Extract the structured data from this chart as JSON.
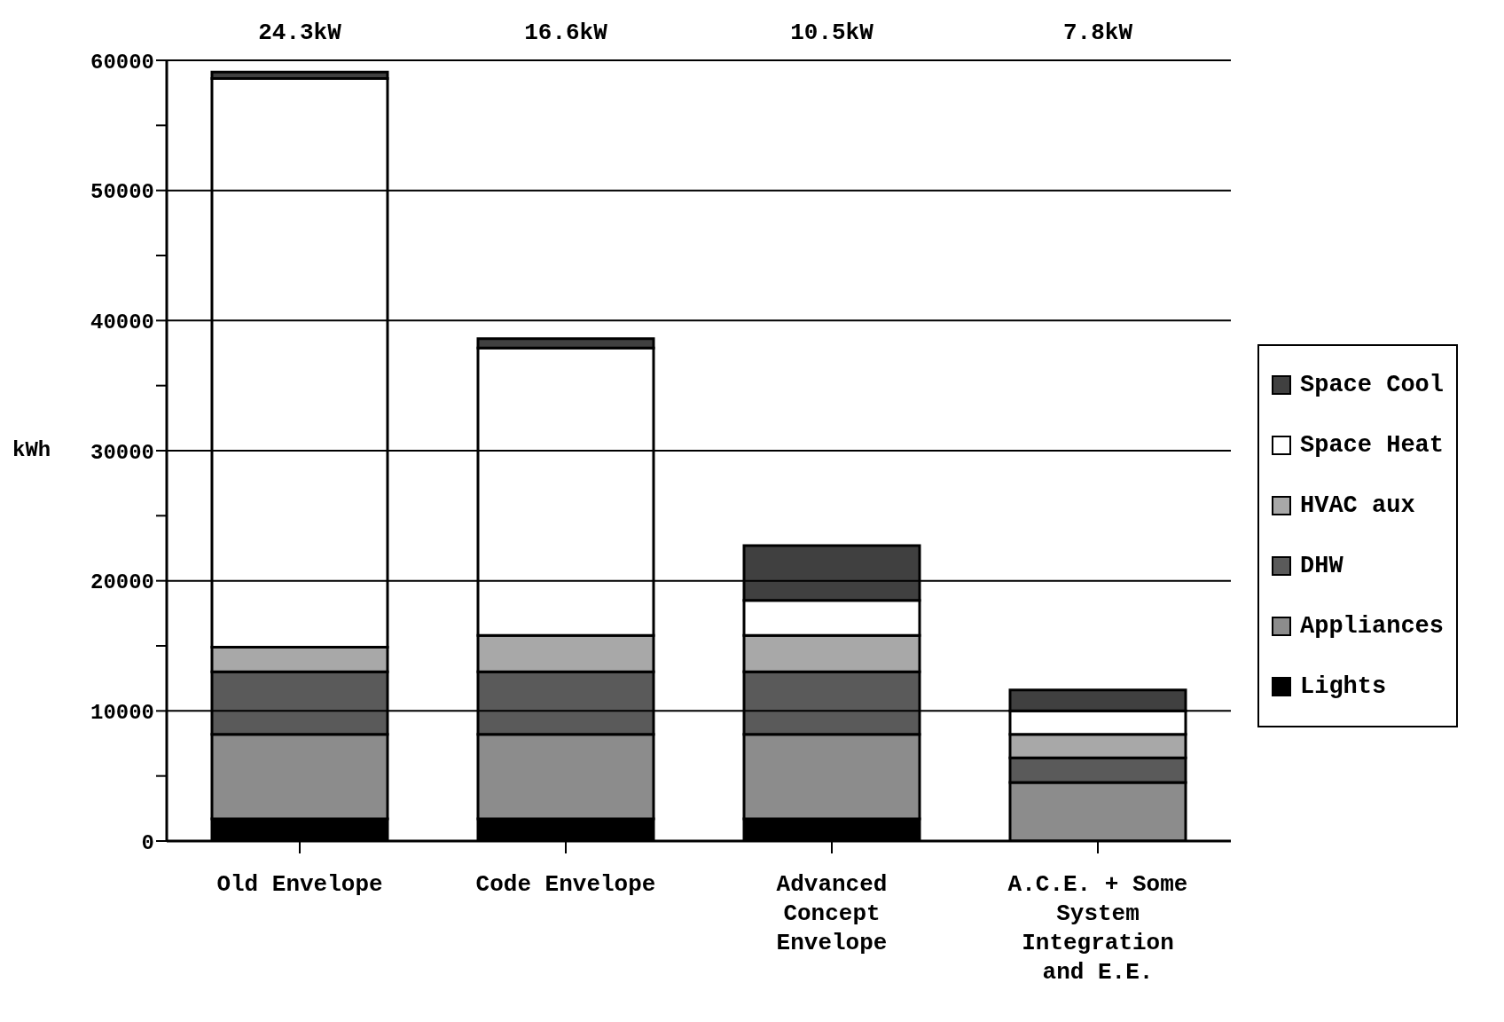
{
  "chart_data": {
    "type": "bar",
    "stacked": true,
    "ylabel": "kWh",
    "categories": [
      "Old Envelope",
      "Code Envelope",
      "Advanced Concept Envelope",
      "A.C.E. + Some System Integration and E.E."
    ],
    "series": [
      {
        "name": "Lights",
        "color": "#000000",
        "values": [
          1700,
          1700,
          1700,
          null
        ]
      },
      {
        "name": "Appliances",
        "color": "#8c8c8c",
        "values": [
          6500,
          6500,
          6500,
          4500
        ]
      },
      {
        "name": "DHW",
        "color": "#5a5a5a",
        "values": [
          4800,
          4800,
          4800,
          1900
        ]
      },
      {
        "name": "HVAC aux",
        "color": "#a8a8a8",
        "values": [
          1900,
          2800,
          2800,
          1800
        ]
      },
      {
        "name": "Space Heat",
        "color": "#ffffff",
        "values": [
          43700,
          22100,
          2700,
          1800
        ]
      },
      {
        "name": "Space Cool",
        "color": "#404040",
        "values": [
          500,
          700,
          4200,
          1600
        ]
      }
    ],
    "annotations": [
      "24.3kW",
      "16.6kW",
      "10.5kW",
      "7.8kW"
    ],
    "ylim": [
      0,
      60000
    ],
    "yticks": [
      0,
      {
        "value": 5000,
        "label": null
      },
      10000,
      {
        "value": 15000,
        "label": null
      },
      20000,
      {
        "value": 25000,
        "label": null
      },
      30000,
      {
        "value": 35000,
        "label": null
      },
      40000,
      {
        "value": 45000,
        "label": null
      },
      50000,
      {
        "value": 55000,
        "label": null
      },
      60000
    ],
    "grid": "y",
    "legend": "right"
  }
}
